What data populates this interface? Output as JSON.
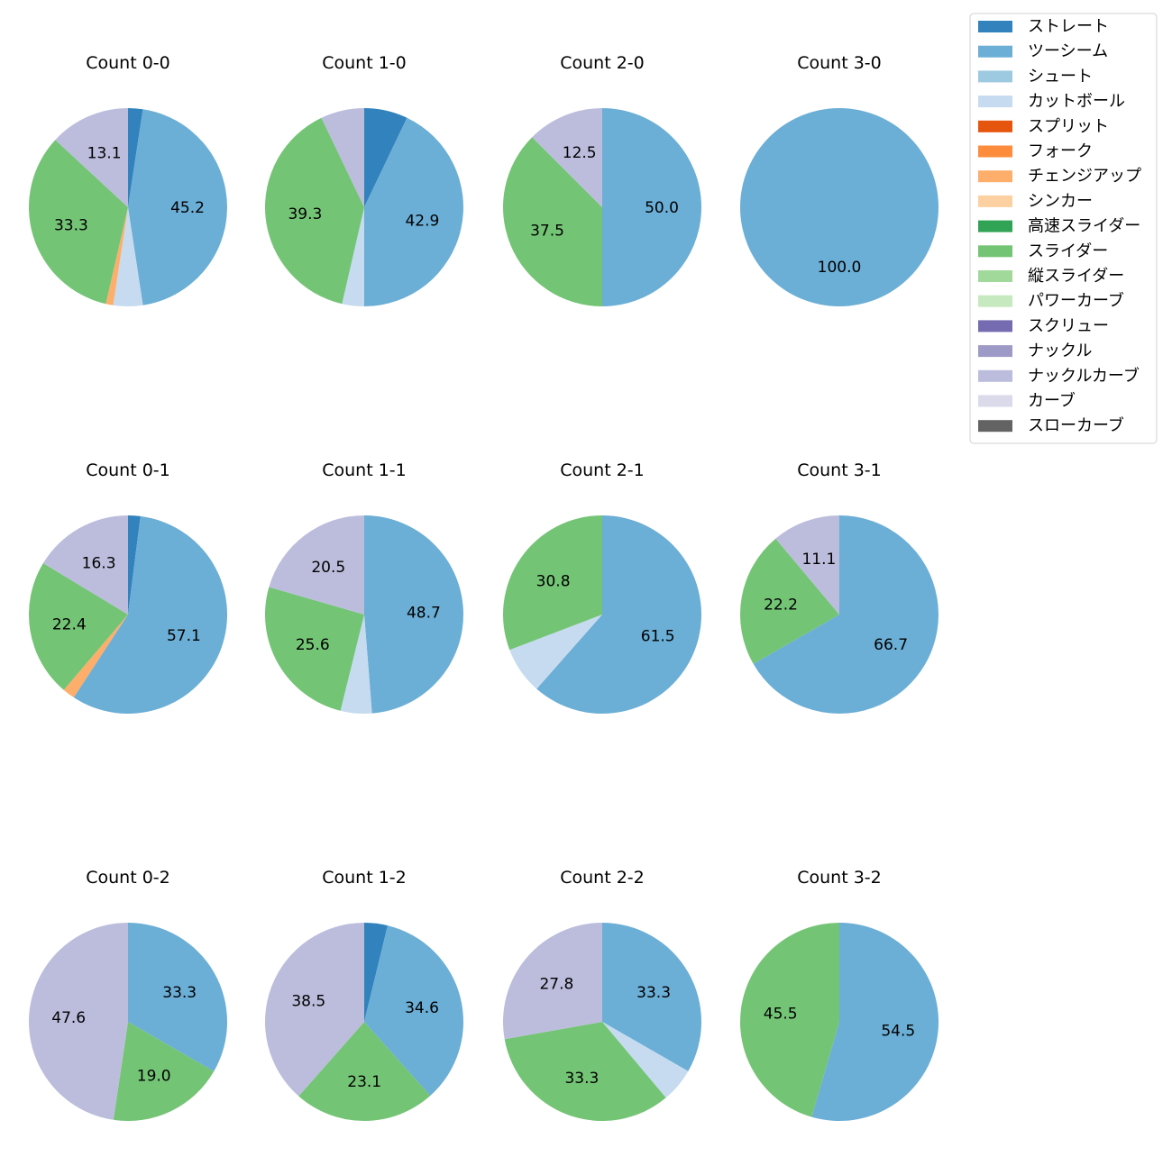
{
  "chart_data": {
    "type": "pie",
    "legend": {
      "placement": "top-right",
      "entries": [
        {
          "name": "ストレート",
          "color": "#3182bd"
        },
        {
          "name": "ツーシーム",
          "color": "#6baed6"
        },
        {
          "name": "シュート",
          "color": "#9ecae1"
        },
        {
          "name": "カットボール",
          "color": "#c6dbef"
        },
        {
          "name": "スプリット",
          "color": "#e6550d"
        },
        {
          "name": "フォーク",
          "color": "#fd8d3c"
        },
        {
          "name": "チェンジアップ",
          "color": "#fdae6b"
        },
        {
          "name": "シンカー",
          "color": "#fdd0a2"
        },
        {
          "name": "高速スライダー",
          "color": "#31a354"
        },
        {
          "name": "スライダー",
          "color": "#74c476"
        },
        {
          "name": "縦スライダー",
          "color": "#a1d99b"
        },
        {
          "name": "パワーカーブ",
          "color": "#c7e9c0"
        },
        {
          "name": "スクリュー",
          "color": "#756bb1"
        },
        {
          "name": "ナックル",
          "color": "#9e9ac8"
        },
        {
          "name": "ナックルカーブ",
          "color": "#bcbddc"
        },
        {
          "name": "カーブ",
          "color": "#dadaeb"
        },
        {
          "name": "スローカーブ",
          "color": "#636363"
        }
      ]
    },
    "charts": [
      {
        "title": "Count 0-0",
        "slices": [
          {
            "pitch": "ストレート",
            "value": 2.4
          },
          {
            "pitch": "ツーシーム",
            "value": 45.2,
            "label": "45.2"
          },
          {
            "pitch": "カットボール",
            "value": 4.8
          },
          {
            "pitch": "チェンジアップ",
            "value": 1.2
          },
          {
            "pitch": "スライダー",
            "value": 33.3,
            "label": "33.3"
          },
          {
            "pitch": "ナックルカーブ",
            "value": 13.1,
            "label": "13.1"
          }
        ]
      },
      {
        "title": "Count 1-0",
        "slices": [
          {
            "pitch": "ストレート",
            "value": 7.1
          },
          {
            "pitch": "ツーシーム",
            "value": 42.9,
            "label": "42.9"
          },
          {
            "pitch": "カットボール",
            "value": 3.6
          },
          {
            "pitch": "スライダー",
            "value": 39.3,
            "label": "39.3"
          },
          {
            "pitch": "ナックルカーブ",
            "value": 7.1
          }
        ]
      },
      {
        "title": "Count 2-0",
        "slices": [
          {
            "pitch": "ツーシーム",
            "value": 50.0,
            "label": "50.0"
          },
          {
            "pitch": "スライダー",
            "value": 37.5,
            "label": "37.5"
          },
          {
            "pitch": "ナックルカーブ",
            "value": 12.5,
            "label": "12.5"
          }
        ]
      },
      {
        "title": "Count 3-0",
        "slices": [
          {
            "pitch": "ツーシーム",
            "value": 100.0,
            "label": "100.0"
          }
        ]
      },
      {
        "title": "Count 0-1",
        "slices": [
          {
            "pitch": "ストレート",
            "value": 2.0
          },
          {
            "pitch": "ツーシーム",
            "value": 57.1,
            "label": "57.1"
          },
          {
            "pitch": "チェンジアップ",
            "value": 2.0
          },
          {
            "pitch": "スライダー",
            "value": 22.4,
            "label": "22.4"
          },
          {
            "pitch": "ナックルカーブ",
            "value": 16.3,
            "label": "16.3"
          }
        ]
      },
      {
        "title": "Count 1-1",
        "slices": [
          {
            "pitch": "ツーシーム",
            "value": 48.7,
            "label": "48.7"
          },
          {
            "pitch": "カットボール",
            "value": 5.1
          },
          {
            "pitch": "スライダー",
            "value": 25.6,
            "label": "25.6"
          },
          {
            "pitch": "ナックルカーブ",
            "value": 20.5,
            "label": "20.5"
          }
        ]
      },
      {
        "title": "Count 2-1",
        "slices": [
          {
            "pitch": "ツーシーム",
            "value": 61.5,
            "label": "61.5"
          },
          {
            "pitch": "カットボール",
            "value": 7.7
          },
          {
            "pitch": "スライダー",
            "value": 30.8,
            "label": "30.8"
          }
        ]
      },
      {
        "title": "Count 3-1",
        "slices": [
          {
            "pitch": "ツーシーム",
            "value": 66.7,
            "label": "66.7"
          },
          {
            "pitch": "スライダー",
            "value": 22.2,
            "label": "22.2"
          },
          {
            "pitch": "ナックルカーブ",
            "value": 11.1,
            "label": "11.1"
          }
        ]
      },
      {
        "title": "Count 0-2",
        "slices": [
          {
            "pitch": "ツーシーム",
            "value": 33.3,
            "label": "33.3"
          },
          {
            "pitch": "スライダー",
            "value": 19.0,
            "label": "19.0"
          },
          {
            "pitch": "ナックルカーブ",
            "value": 47.6,
            "label": "47.6"
          }
        ]
      },
      {
        "title": "Count 1-2",
        "slices": [
          {
            "pitch": "ストレート",
            "value": 3.8
          },
          {
            "pitch": "ツーシーム",
            "value": 34.6,
            "label": "34.6"
          },
          {
            "pitch": "スライダー",
            "value": 23.1,
            "label": "23.1"
          },
          {
            "pitch": "ナックルカーブ",
            "value": 38.5,
            "label": "38.5"
          }
        ]
      },
      {
        "title": "Count 2-2",
        "slices": [
          {
            "pitch": "ツーシーム",
            "value": 33.3,
            "label": "33.3"
          },
          {
            "pitch": "カットボール",
            "value": 5.6
          },
          {
            "pitch": "スライダー",
            "value": 33.3,
            "label": "33.3"
          },
          {
            "pitch": "ナックルカーブ",
            "value": 27.8,
            "label": "27.8"
          }
        ]
      },
      {
        "title": "Count 3-2",
        "slices": [
          {
            "pitch": "ツーシーム",
            "value": 54.5,
            "label": "54.5"
          },
          {
            "pitch": "スライダー",
            "value": 45.5,
            "label": "45.5"
          }
        ]
      }
    ]
  }
}
